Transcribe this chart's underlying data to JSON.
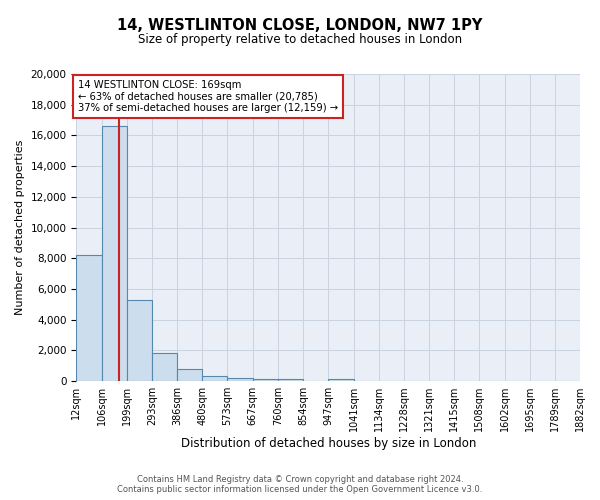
{
  "title": "14, WESTLINTON CLOSE, LONDON, NW7 1PY",
  "subtitle": "Size of property relative to detached houses in London",
  "xlabel": "Distribution of detached houses by size in London",
  "ylabel": "Number of detached properties",
  "bin_labels": [
    "12sqm",
    "106sqm",
    "199sqm",
    "293sqm",
    "386sqm",
    "480sqm",
    "573sqm",
    "667sqm",
    "760sqm",
    "854sqm",
    "947sqm",
    "1041sqm",
    "1134sqm",
    "1228sqm",
    "1321sqm",
    "1415sqm",
    "1508sqm",
    "1602sqm",
    "1695sqm",
    "1789sqm",
    "1882sqm"
  ],
  "bin_edges": [
    12,
    106,
    199,
    293,
    386,
    480,
    573,
    667,
    760,
    854,
    947,
    1041,
    1134,
    1228,
    1321,
    1415,
    1508,
    1602,
    1695,
    1789,
    1882
  ],
  "bar_heights": [
    8200,
    16600,
    5300,
    1850,
    800,
    300,
    200,
    150,
    150,
    0,
    150,
    0,
    0,
    0,
    0,
    0,
    0,
    0,
    0,
    0
  ],
  "bar_color": "#ccdded",
  "bar_edge_color": "#5588aa",
  "property_size": 169,
  "vline_color": "#cc2222",
  "annotation_line1": "14 WESTLINTON CLOSE: 169sqm",
  "annotation_line2": "← 63% of detached houses are smaller (20,785)",
  "annotation_line3": "37% of semi-detached houses are larger (12,159) →",
  "annotation_box_color": "#ffffff",
  "annotation_box_edge": "#cc2222",
  "ylim": [
    0,
    20000
  ],
  "yticks": [
    0,
    2000,
    4000,
    6000,
    8000,
    10000,
    12000,
    14000,
    16000,
    18000,
    20000
  ],
  "footer1": "Contains HM Land Registry data © Crown copyright and database right 2024.",
  "footer2": "Contains public sector information licensed under the Open Government Licence v3.0.",
  "grid_color": "#c8d4e0",
  "bg_color": "#eaeff7",
  "title_fontsize": 10.5,
  "subtitle_fontsize": 8.5
}
